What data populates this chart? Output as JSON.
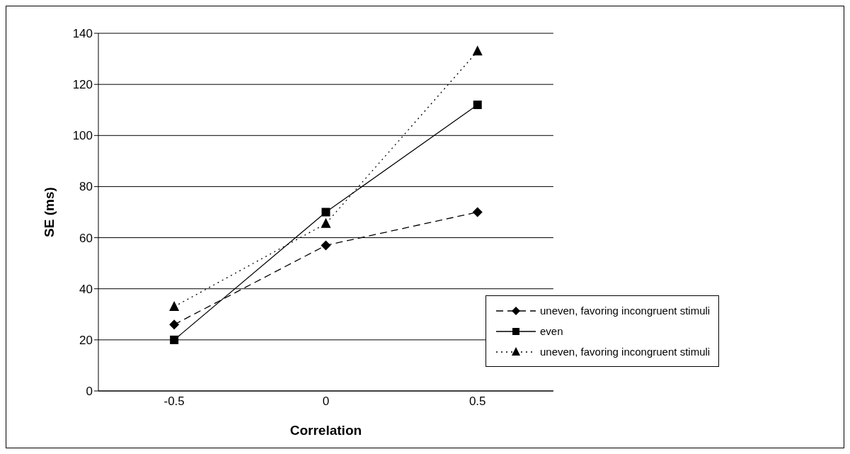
{
  "chart_data": {
    "type": "line",
    "xlabel": "Correlation",
    "ylabel": "SE (ms)",
    "categories": [
      "-0.5",
      "0",
      "0.5"
    ],
    "series": [
      {
        "name": "uneven, favoring incongruent stimuli",
        "color": "#000000",
        "marker": "diamond",
        "line_style": "dashed",
        "values": [
          26,
          57,
          70
        ]
      },
      {
        "name": "even",
        "color": "#000000",
        "marker": "square",
        "line_style": "solid",
        "values": [
          20,
          70,
          112
        ]
      },
      {
        "name": "uneven, favoring incongruent stimuli",
        "color": "#000000",
        "marker": "triangle",
        "line_style": "dotted",
        "values": [
          33,
          65.5,
          133
        ]
      }
    ],
    "ylim": [
      0,
      140
    ],
    "yticks": [
      0,
      20,
      40,
      60,
      80,
      100,
      120,
      140
    ],
    "grid": "y",
    "legend": "bottom right"
  }
}
